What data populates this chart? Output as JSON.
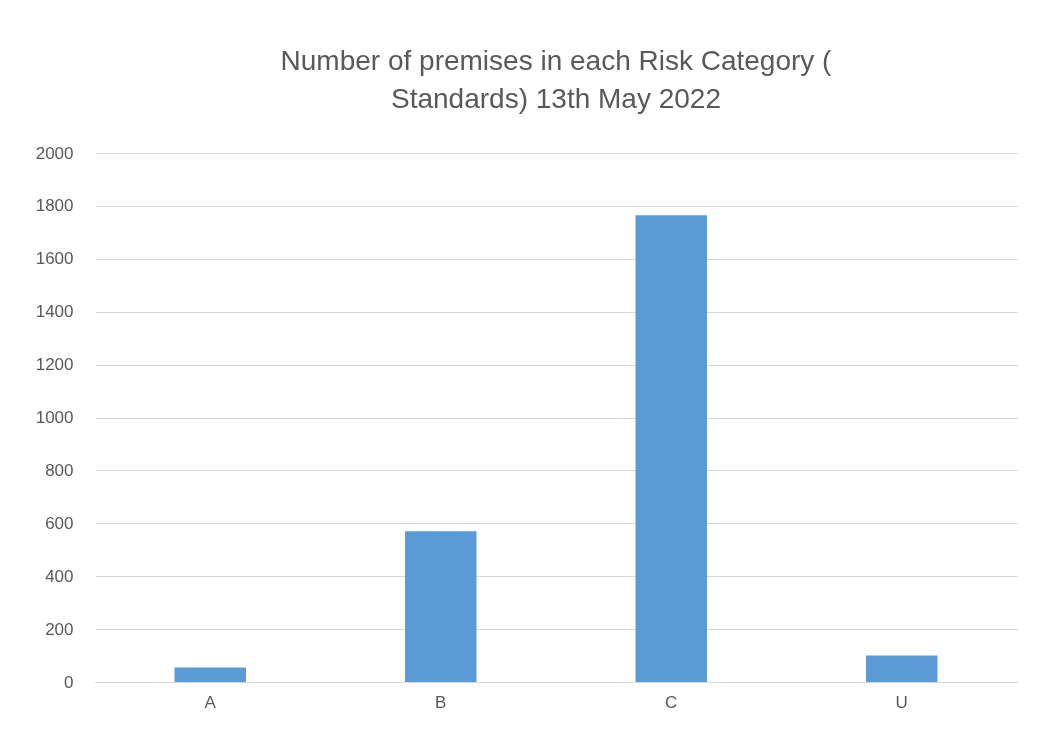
{
  "chart_data": {
    "type": "bar",
    "title": "Number of premises in each Risk Category ( Standards) 13th May 2022",
    "categories": [
      "A",
      "B",
      "C",
      "U"
    ],
    "values": [
      55,
      570,
      1765,
      100
    ],
    "color": "#5b9bd5",
    "ylim": [
      0,
      2000
    ],
    "yticks": [
      0,
      200,
      400,
      600,
      800,
      1000,
      1200,
      1400,
      1600,
      1800,
      2000
    ],
    "grid": "y"
  }
}
